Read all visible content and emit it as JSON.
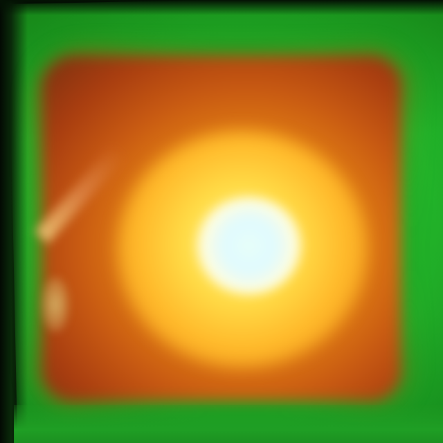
{
  "image": {
    "colors": {
      "background_edge": "#030a03",
      "field": "#22b52a",
      "blob_outer": "#a83d10",
      "blob_mid": "#e98a14",
      "core": "#ffe04a",
      "core_center": "#e8fff8"
    }
  }
}
